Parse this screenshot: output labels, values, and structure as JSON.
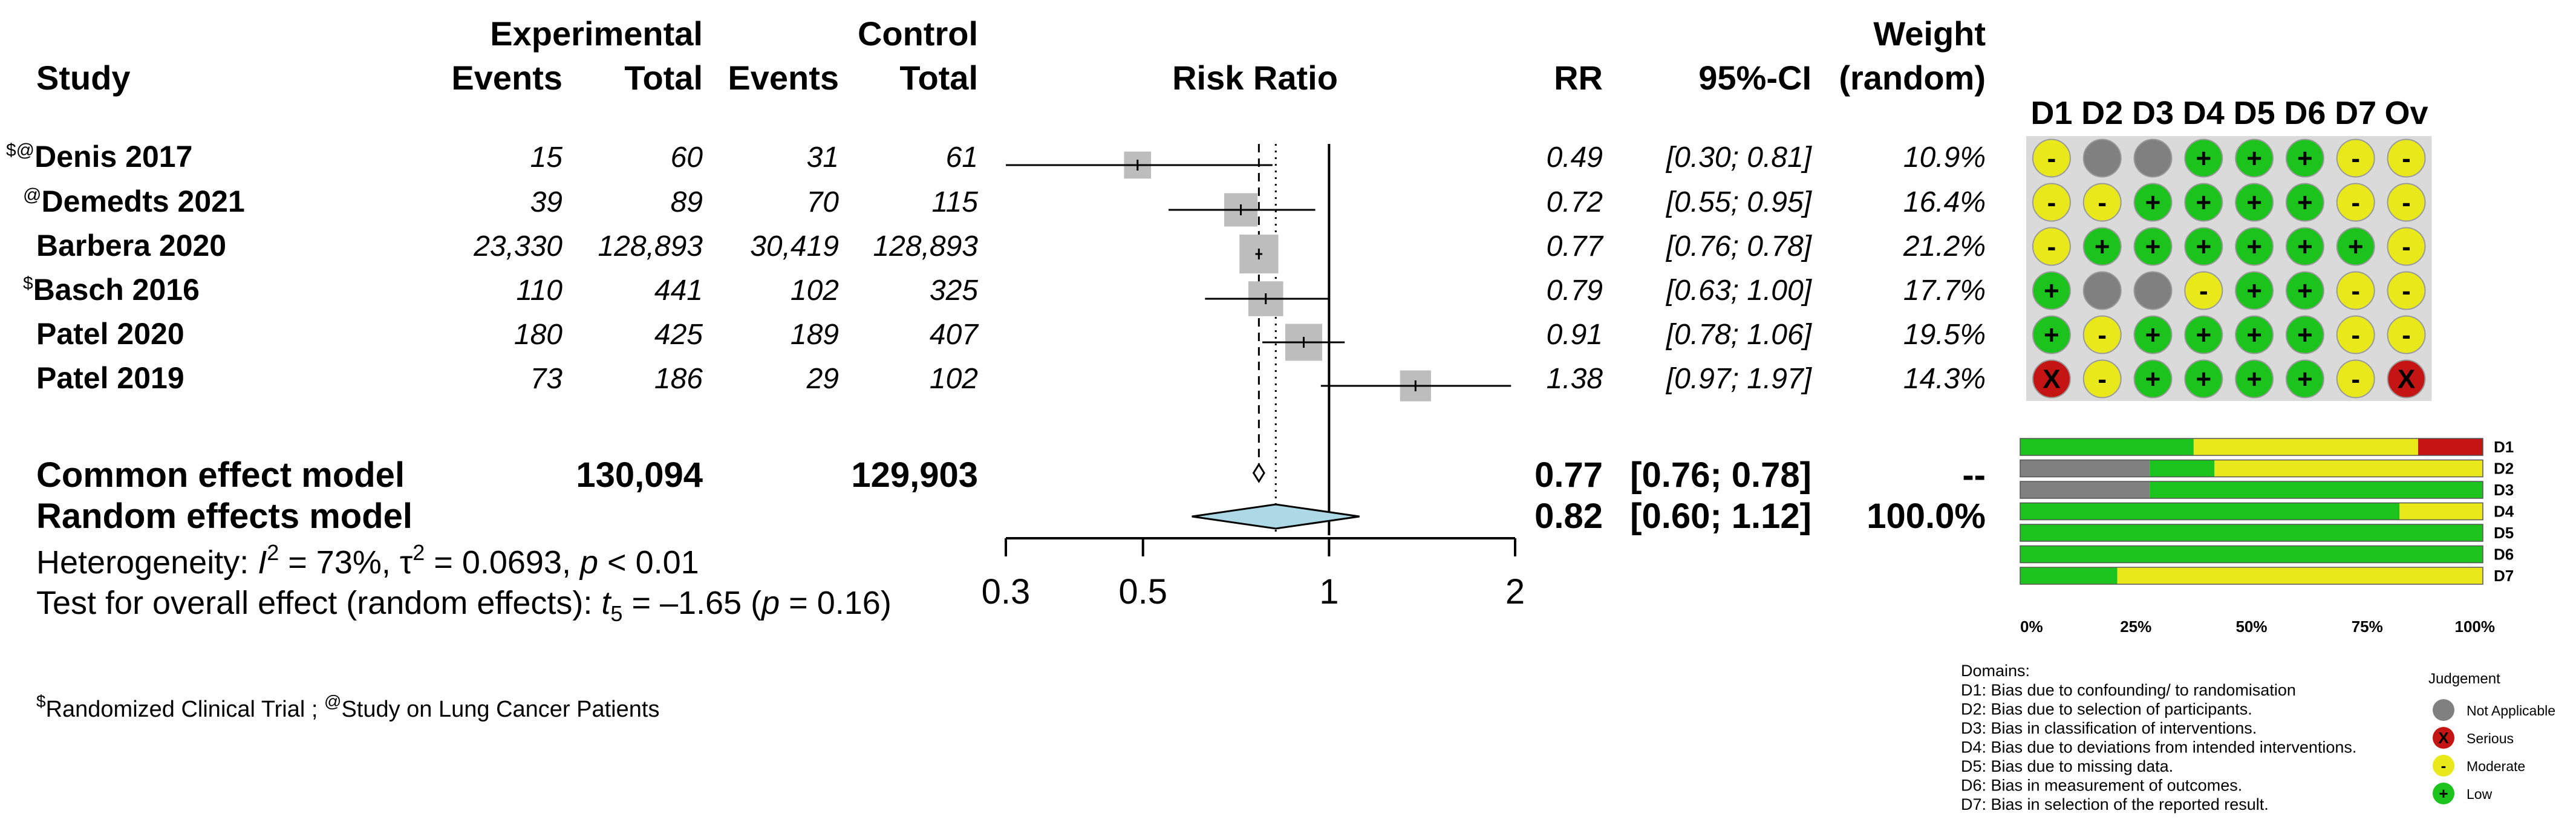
{
  "colors": {
    "low": "#1DC31D",
    "moderate": "#E8E81A",
    "serious": "#C41414",
    "na": "#808080",
    "square": "#BDBDBD",
    "diamond": "#ADD8E6",
    "panel_bg": "#DADADA"
  },
  "header": {
    "experimental": "Experimental",
    "control": "Control",
    "study": "Study",
    "events": "Events",
    "total": "Total",
    "risk_ratio": "Risk Ratio",
    "rr": "RR",
    "ci": "95%-CI",
    "weight": "Weight",
    "weight_sub": "(random)"
  },
  "studies": [
    {
      "prefix": "$@",
      "name": "Denis 2017",
      "exp_events": "15",
      "exp_total": "60",
      "ctrl_events": "31",
      "ctrl_total": "61",
      "rr": "0.49",
      "ci": "[0.30; 0.81]",
      "weight": "10.9%"
    },
    {
      "prefix": "@",
      "name": "Demedts 2021",
      "exp_events": "39",
      "exp_total": "89",
      "ctrl_events": "70",
      "ctrl_total": "115",
      "rr": "0.72",
      "ci": "[0.55; 0.95]",
      "weight": "16.4%"
    },
    {
      "prefix": "",
      "name": "Barbera 2020",
      "exp_events": "23,330",
      "exp_total": "128,893",
      "ctrl_events": "30,419",
      "ctrl_total": "128,893",
      "rr": "0.77",
      "ci": "[0.76; 0.78]",
      "weight": "21.2%"
    },
    {
      "prefix": "$",
      "name": "Basch 2016",
      "exp_events": "110",
      "exp_total": "441",
      "ctrl_events": "102",
      "ctrl_total": "325",
      "rr": "0.79",
      "ci": "[0.63; 1.00]",
      "weight": "17.7%"
    },
    {
      "prefix": "",
      "name": "Patel 2020",
      "exp_events": "180",
      "exp_total": "425",
      "ctrl_events": "189",
      "ctrl_total": "407",
      "rr": "0.91",
      "ci": "[0.78; 1.06]",
      "weight": "19.5%"
    },
    {
      "prefix": "",
      "name": "Patel 2019",
      "exp_events": "73",
      "exp_total": "186",
      "ctrl_events": "29",
      "ctrl_total": "102",
      "rr": "1.38",
      "ci": "[0.97; 1.97]",
      "weight": "14.3%"
    }
  ],
  "summary": {
    "common": {
      "label": "Common effect model",
      "exp_total": "130,094",
      "ctrl_total": "129,903",
      "rr": "0.77",
      "ci": "[0.76; 0.78]",
      "weight": "--"
    },
    "random": {
      "label": "Random effects model",
      "rr": "0.82",
      "ci": "[0.60; 1.12]",
      "weight": "100.0%"
    },
    "heterogeneity_prefix": "Heterogeneity: ",
    "i2_sym": "I",
    "i2_val": " = 73%, ",
    "tau_sym": "τ",
    "tau_val": " = 0.0693, ",
    "p_sym": "p",
    "p_val": " < 0.01",
    "test_prefix": "Test for overall effect (random effects): ",
    "t_sym": "t",
    "t_sub": "5",
    "t_val": " = –1.65 (",
    "t_p": "p",
    "t_p_val": " = 0.16)",
    "sup2": "2"
  },
  "chart_data": {
    "type": "forest",
    "title": "Risk Ratio",
    "x_scale": "log",
    "xlim": [
      0.3,
      2
    ],
    "x_ticks": [
      "0.3",
      "0.5",
      "1",
      "2"
    ],
    "null_line": 1,
    "common_effect_line": 0.77,
    "random_effect_line": 0.82,
    "studies": [
      {
        "name": "Denis 2017",
        "rr": 0.49,
        "lower": 0.3,
        "upper": 0.81,
        "weight": 10.9
      },
      {
        "name": "Demedts 2021",
        "rr": 0.72,
        "lower": 0.55,
        "upper": 0.95,
        "weight": 16.4
      },
      {
        "name": "Barbera 2020",
        "rr": 0.77,
        "lower": 0.76,
        "upper": 0.78,
        "weight": 21.2
      },
      {
        "name": "Basch 2016",
        "rr": 0.79,
        "lower": 0.63,
        "upper": 1.0,
        "weight": 17.7
      },
      {
        "name": "Patel 2020",
        "rr": 0.91,
        "lower": 0.78,
        "upper": 1.06,
        "weight": 19.5
      },
      {
        "name": "Patel 2019",
        "rr": 1.38,
        "lower": 0.97,
        "upper": 1.97,
        "weight": 14.3
      }
    ],
    "common_effect": {
      "rr": 0.77,
      "lower": 0.76,
      "upper": 0.78
    },
    "random_effect": {
      "rr": 0.82,
      "lower": 0.6,
      "upper": 1.12
    }
  },
  "rob": {
    "columns": [
      "D1",
      "D2",
      "D3",
      "D4",
      "D5",
      "D6",
      "D7",
      "Ov"
    ],
    "rows": [
      [
        "moderate",
        "na",
        "na",
        "low",
        "low",
        "low",
        "moderate",
        "moderate"
      ],
      [
        "moderate",
        "moderate",
        "low",
        "low",
        "low",
        "low",
        "moderate",
        "moderate"
      ],
      [
        "moderate",
        "low",
        "low",
        "low",
        "low",
        "low",
        "low",
        "moderate"
      ],
      [
        "low",
        "na",
        "na",
        "moderate",
        "low",
        "low",
        "moderate",
        "moderate"
      ],
      [
        "low",
        "moderate",
        "low",
        "low",
        "low",
        "low",
        "moderate",
        "moderate"
      ],
      [
        "serious",
        "moderate",
        "low",
        "low",
        "low",
        "low",
        "moderate",
        "serious"
      ]
    ],
    "symbols": {
      "low": "+",
      "moderate": "-",
      "serious": "X",
      "na": ""
    }
  },
  "rob_summary": {
    "type": "stacked-bar",
    "categories": [
      "D1",
      "D2",
      "D3",
      "D4",
      "D5",
      "D6",
      "D7"
    ],
    "bars": [
      {
        "low": 37.5,
        "moderate": 48.5,
        "serious": 14,
        "na": 0
      },
      {
        "low": 14,
        "moderate": 58,
        "serious": 0,
        "na": 28
      },
      {
        "low": 72,
        "moderate": 0,
        "serious": 0,
        "na": 28
      },
      {
        "low": 82,
        "moderate": 18,
        "serious": 0,
        "na": 0
      },
      {
        "low": 100,
        "moderate": 0,
        "serious": 0,
        "na": 0
      },
      {
        "low": 100,
        "moderate": 0,
        "serious": 0,
        "na": 0
      },
      {
        "low": 21,
        "moderate": 79,
        "serious": 0,
        "na": 0
      }
    ],
    "x_ticks": [
      "0%",
      "25%",
      "50%",
      "75%",
      "100%"
    ]
  },
  "legend": {
    "domains_title": "Domains:",
    "domains": [
      "D1: Bias due to confounding/ to randomisation",
      "D2: Bias due to selection of participants.",
      "D3: Bias in classification of interventions.",
      "D4: Bias due to deviations from intended interventions.",
      "D5: Bias due to missing data.",
      "D6: Bias in measurement of outcomes.",
      "D7: Bias in selection of the reported result."
    ],
    "judgement_title": "Judgement",
    "judgements": [
      {
        "key": "na",
        "label": "Not Applicable",
        "symbol": ""
      },
      {
        "key": "serious",
        "label": "Serious",
        "symbol": "X"
      },
      {
        "key": "moderate",
        "label": "Moderate",
        "symbol": "-"
      },
      {
        "key": "low",
        "label": "Low",
        "symbol": "+"
      }
    ]
  },
  "footnote": {
    "sup1": "$",
    "text1": "Randomized Clinical Trial",
    "sep": " ;  ",
    "sup2": "@",
    "text2": "Study on Lung Cancer Patients"
  }
}
